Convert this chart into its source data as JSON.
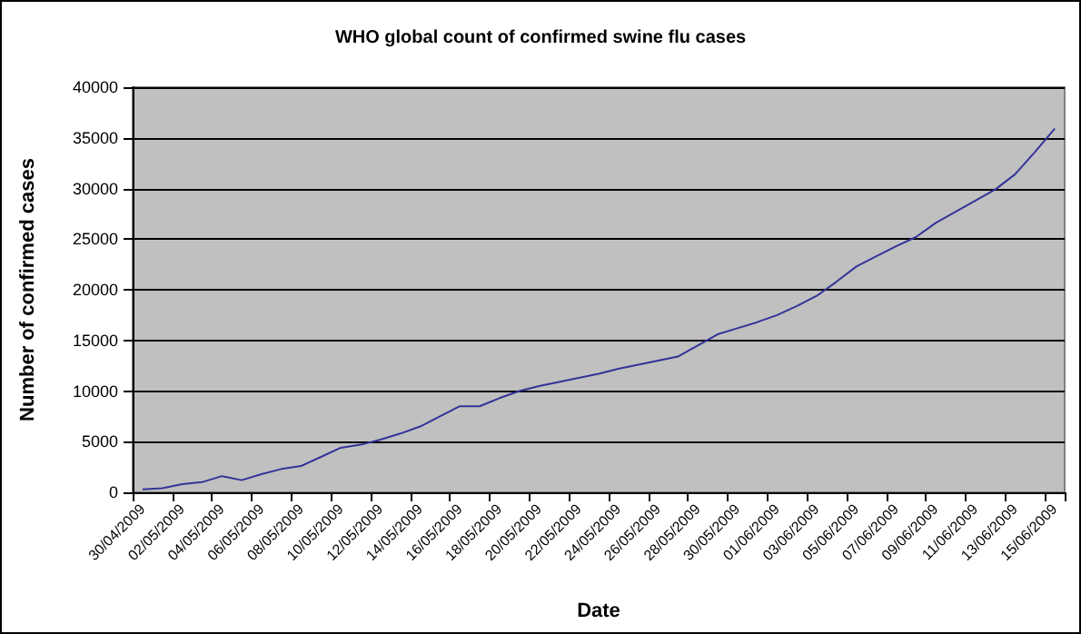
{
  "chart_data": {
    "type": "line",
    "title": "WHO global count of confirmed swine flu cases",
    "xlabel": "Date",
    "ylabel": "Number of confirmed cases",
    "categories": [
      "30/04/2009",
      null,
      "02/05/2009",
      null,
      "04/05/2009",
      null,
      "06/05/2009",
      null,
      "08/05/2009",
      null,
      "10/05/2009",
      null,
      "12/05/2009",
      null,
      "14/05/2009",
      null,
      "16/05/2009",
      null,
      "18/05/2009",
      null,
      "20/05/2009",
      null,
      "22/05/2009",
      null,
      "24/05/2009",
      null,
      "26/05/2009",
      null,
      "28/05/2009",
      null,
      "30/05/2009",
      null,
      "01/06/2009",
      null,
      "03/06/2009",
      null,
      "05/06/2009",
      null,
      "07/06/2009",
      null,
      "09/06/2009",
      null,
      "11/06/2009",
      null,
      "13/06/2009",
      null,
      "15/06/2009"
    ],
    "series": [
      {
        "color": "#333399",
        "values": [
          300,
          400,
          800,
          1000,
          1600,
          1200,
          1800,
          2300,
          2600,
          3500,
          4400,
          4700,
          5200,
          5800,
          6500,
          7500,
          8500,
          8500,
          9300,
          10000,
          10500,
          10900,
          11300,
          11700,
          12200,
          12600,
          13000,
          13400,
          14500,
          15600,
          16200,
          16800,
          17500,
          18400,
          19400,
          20800,
          22300,
          23300,
          24300,
          25200,
          26600,
          27700,
          28800,
          29900,
          31400,
          33600,
          35900
        ]
      }
    ],
    "ylim": [
      0,
      40000
    ],
    "yticks": [
      0,
      5000,
      10000,
      15000,
      20000,
      25000,
      30000,
      35000,
      40000
    ],
    "grid": "y",
    "marker": "none",
    "line_style": "solid"
  }
}
